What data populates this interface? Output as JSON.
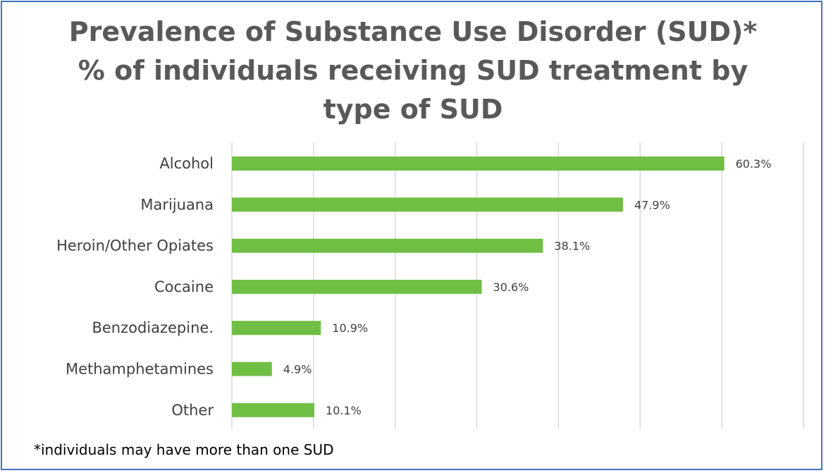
{
  "chart_data": {
    "type": "bar",
    "orientation": "horizontal",
    "title_lines": [
      "Prevalence of Substance Use Disorder (SUD)*",
      "% of individuals receiving SUD treatment by",
      "type of SUD"
    ],
    "categories": [
      "Alcohol",
      "Marijuana",
      "Heroin/Other Opiates",
      "Cocaine",
      "Benzodiazepine.",
      "Methamphetamines",
      "Other"
    ],
    "values": [
      60.3,
      47.9,
      38.1,
      30.6,
      10.9,
      4.9,
      10.1
    ],
    "data_labels": [
      "60.3%",
      "47.9%",
      "38.1%",
      "30.6%",
      "10.9%",
      "4.9%",
      "10.1%"
    ],
    "xlim": [
      0,
      70
    ],
    "gridline_step": 10,
    "grid": true,
    "legend": "none",
    "colors": {
      "bar": "#70bf44",
      "gridline": "#d9d9d9",
      "border": "#4472c4",
      "title": "#595959"
    },
    "footnote": "*individuals may have more than one SUD"
  }
}
